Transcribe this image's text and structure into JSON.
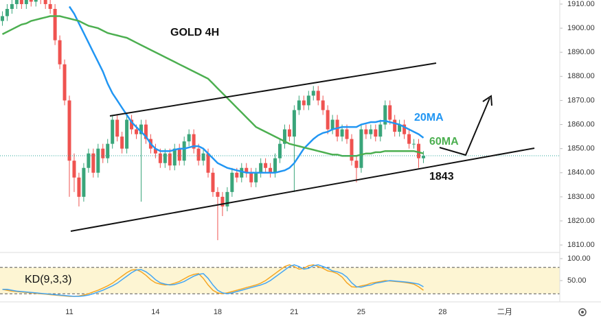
{
  "chart_data": [
    {
      "type": "candlestick",
      "title": "GOLD 4H",
      "xlim": [
        -0.5,
        116.5
      ],
      "xticks": [
        {
          "value": 14,
          "label": "11"
        },
        {
          "value": 32,
          "label": "14"
        },
        {
          "value": 45,
          "label": "18"
        },
        {
          "value": 61,
          "label": "21"
        },
        {
          "value": 75,
          "label": "25"
        },
        {
          "value": 92,
          "label": "28"
        },
        {
          "value": 105,
          "label": "二月"
        }
      ],
      "ylim": [
        1806.9,
        1911.7
      ],
      "yticks": [
        {
          "value": 1810,
          "label": "1810.00"
        },
        {
          "value": 1820,
          "label": "1820.00"
        },
        {
          "value": 1830,
          "label": "1830.00"
        },
        {
          "value": 1840,
          "label": "1840.00"
        },
        {
          "value": 1850,
          "label": "1850.00"
        },
        {
          "value": 1860,
          "label": "1860.00"
        },
        {
          "value": 1870,
          "label": "1870.00"
        },
        {
          "value": 1880,
          "label": "1880.00"
        },
        {
          "value": 1890,
          "label": "1890.00"
        },
        {
          "value": 1900,
          "label": "1900.00"
        },
        {
          "value": 1910,
          "label": "1910.00"
        }
      ],
      "up_color": "#3aa57a",
      "down_color": "#ef5350",
      "open": [
        1903,
        1905,
        1908,
        1910,
        1912,
        1910,
        1913,
        1911,
        1914,
        1912,
        1910,
        1908,
        1895,
        1885,
        1870,
        1845,
        1838,
        1830,
        1842,
        1848,
        1840,
        1850,
        1846,
        1852,
        1862,
        1855,
        1850,
        1862,
        1858,
        1856,
        1860,
        1854,
        1850,
        1848,
        1844,
        1848,
        1843,
        1850,
        1845,
        1853,
        1856,
        1850,
        1845,
        1848,
        1840,
        1832,
        1830,
        1826,
        1832,
        1840,
        1838,
        1842,
        1840,
        1836,
        1840,
        1844,
        1842,
        1840,
        1846,
        1852,
        1858,
        1855,
        1866,
        1870,
        1868,
        1872,
        1874,
        1870,
        1866,
        1858,
        1862,
        1855,
        1858,
        1854,
        1845,
        1842,
        1858,
        1856,
        1858,
        1855,
        1860,
        1868,
        1862,
        1857,
        1860,
        1856,
        1852,
        1852,
        1846
      ],
      "high": [
        1907,
        1910,
        1912,
        1914,
        1914,
        1915,
        1915,
        1916,
        1916,
        1914,
        1912,
        1910,
        1897,
        1887,
        1872,
        1848,
        1840,
        1844,
        1850,
        1850,
        1852,
        1852,
        1854,
        1864,
        1864,
        1857,
        1864,
        1864,
        1860,
        1862,
        1862,
        1856,
        1852,
        1850,
        1850,
        1850,
        1852,
        1852,
        1855,
        1858,
        1858,
        1852,
        1850,
        1850,
        1842,
        1834,
        1832,
        1834,
        1842,
        1842,
        1844,
        1844,
        1842,
        1842,
        1846,
        1846,
        1844,
        1848,
        1854,
        1860,
        1860,
        1868,
        1872,
        1872,
        1874,
        1876,
        1876,
        1872,
        1868,
        1864,
        1864,
        1860,
        1860,
        1856,
        1847,
        1860,
        1860,
        1860,
        1860,
        1862,
        1870,
        1870,
        1864,
        1862,
        1862,
        1858,
        1854,
        1854,
        1849
      ],
      "low": [
        1901,
        1903,
        1906,
        1908,
        1908,
        1908,
        1909,
        1909,
        1910,
        1908,
        1906,
        1893,
        1883,
        1868,
        1830,
        1832,
        1826,
        1828,
        1840,
        1838,
        1838,
        1844,
        1844,
        1850,
        1853,
        1848,
        1848,
        1856,
        1854,
        1828,
        1852,
        1848,
        1846,
        1842,
        1842,
        1841,
        1841,
        1843,
        1843,
        1851,
        1848,
        1843,
        1843,
        1838,
        1830,
        1812,
        1822,
        1824,
        1830,
        1836,
        1836,
        1838,
        1834,
        1834,
        1838,
        1840,
        1838,
        1838,
        1844,
        1850,
        1853,
        1832,
        1864,
        1866,
        1866,
        1870,
        1868,
        1864,
        1856,
        1856,
        1853,
        1853,
        1852,
        1843,
        1836,
        1840,
        1854,
        1854,
        1853,
        1853,
        1858,
        1860,
        1855,
        1855,
        1854,
        1850,
        1850,
        1842,
        1844
      ],
      "close": [
        1905,
        1908,
        1910,
        1912,
        1910,
        1913,
        1911,
        1914,
        1912,
        1910,
        1908,
        1895,
        1885,
        1870,
        1845,
        1838,
        1830,
        1842,
        1848,
        1840,
        1850,
        1846,
        1852,
        1862,
        1855,
        1850,
        1862,
        1858,
        1856,
        1860,
        1854,
        1850,
        1848,
        1844,
        1848,
        1843,
        1850,
        1845,
        1853,
        1856,
        1850,
        1845,
        1848,
        1840,
        1832,
        1830,
        1826,
        1832,
        1840,
        1838,
        1842,
        1840,
        1836,
        1840,
        1844,
        1842,
        1840,
        1846,
        1852,
        1858,
        1855,
        1866,
        1870,
        1868,
        1872,
        1874,
        1870,
        1866,
        1858,
        1862,
        1855,
        1858,
        1854,
        1845,
        1842,
        1858,
        1856,
        1858,
        1855,
        1860,
        1868,
        1862,
        1857,
        1860,
        1856,
        1852,
        1852,
        1846,
        1847
      ],
      "series": [
        {
          "name": "20MA",
          "color": "#2196f3",
          "values": [
            null,
            null,
            null,
            null,
            null,
            null,
            null,
            null,
            null,
            null,
            null,
            null,
            null,
            null,
            1909,
            1906,
            1902,
            1898,
            1894,
            1890,
            1886,
            1882,
            1877,
            1873,
            1870,
            1867,
            1864,
            1861,
            1859,
            1857,
            1855,
            1852,
            1850,
            1849,
            1849,
            1849,
            1849.5,
            1850,
            1850,
            1850.5,
            1851,
            1851,
            1850,
            1848,
            1846,
            1844,
            1843,
            1842,
            1841.5,
            1841,
            1840.5,
            1840,
            1840,
            1840,
            1840,
            1840,
            1840,
            1840,
            1840.5,
            1841,
            1842,
            1844,
            1847,
            1850,
            1852,
            1854,
            1855.5,
            1856.5,
            1857,
            1858,
            1858.5,
            1859,
            1859,
            1859,
            1859,
            1860,
            1860.5,
            1861,
            1861,
            1861.5,
            1861.5,
            1861,
            1860.5,
            1860,
            1859,
            1858,
            1857,
            1856,
            1854.5
          ]
        },
        {
          "name": "60MA",
          "color": "#4caf50",
          "values": [
            1897.5,
            1898.5,
            1899.5,
            1900.5,
            1901.5,
            1902,
            1903,
            1903.5,
            1904,
            1904.5,
            1905,
            1905,
            1905,
            1904.5,
            1904,
            1903.5,
            1903,
            1902,
            1901,
            1900.5,
            1900,
            1899,
            1898,
            1897.5,
            1897,
            1896.5,
            1896,
            1895,
            1894,
            1893,
            1892,
            1891,
            1890,
            1889,
            1888,
            1887,
            1886,
            1885,
            1884,
            1883,
            1882,
            1881,
            1880,
            1879,
            1877,
            1875,
            1873,
            1871,
            1869,
            1867,
            1865,
            1863,
            1861,
            1859,
            1858,
            1857,
            1856,
            1855,
            1854,
            1853,
            1852,
            1851.5,
            1851,
            1850.5,
            1850,
            1849.5,
            1849,
            1848.5,
            1848,
            1847.5,
            1847.5,
            1847,
            1847,
            1847,
            1847,
            1847.5,
            1848,
            1848,
            1848.5,
            1848.5,
            1849,
            1849,
            1849,
            1849,
            1849,
            1849,
            1849,
            1848.5,
            1848
          ]
        }
      ],
      "annotations": [
        {
          "text": "1843"
        }
      ]
    },
    {
      "type": "line",
      "title": "KD(9,3,3)",
      "xlim": [
        -0.5,
        116.5
      ],
      "ylim": [
        10,
        110
      ],
      "yticks": [
        {
          "value": 50,
          "label": "50.00"
        },
        {
          "value": 100,
          "label": "100.00"
        }
      ],
      "levels": [
        80,
        20
      ],
      "series": [
        {
          "color": "#f5a623",
          "values": [
            30,
            28,
            26,
            25,
            24,
            23,
            22,
            21,
            20,
            19,
            18,
            17,
            16,
            15,
            14,
            14,
            15,
            17,
            20,
            24,
            28,
            33,
            38,
            44,
            52,
            60,
            68,
            74,
            75,
            70,
            62,
            52,
            45,
            42,
            40,
            41,
            44,
            48,
            54,
            60,
            64,
            66,
            55,
            40,
            28,
            22,
            20,
            22,
            25,
            28,
            31,
            34,
            37,
            40,
            44,
            50,
            58,
            66,
            74,
            82,
            86,
            82,
            76,
            78,
            84,
            86,
            82,
            78,
            72,
            70,
            66,
            58,
            45,
            36,
            35,
            38,
            40,
            44,
            46,
            48,
            50,
            49,
            48,
            47,
            46,
            44,
            42,
            36,
            28
          ]
        },
        {
          "color": "#42a5f5",
          "values": [
            30,
            30,
            28,
            26,
            25,
            24,
            23,
            22,
            21,
            20,
            19,
            18,
            17,
            16,
            15,
            14,
            14,
            15,
            17,
            20,
            24,
            28,
            33,
            38,
            44,
            52,
            60,
            68,
            74,
            75,
            70,
            62,
            52,
            45,
            42,
            40,
            41,
            44,
            48,
            54,
            60,
            64,
            66,
            55,
            40,
            28,
            22,
            20,
            22,
            25,
            28,
            31,
            34,
            37,
            40,
            44,
            50,
            58,
            66,
            74,
            82,
            86,
            82,
            76,
            78,
            84,
            86,
            82,
            78,
            72,
            70,
            66,
            58,
            45,
            36,
            35,
            38,
            40,
            44,
            46,
            48,
            50,
            49,
            48,
            47,
            46,
            44,
            42,
            36
          ]
        }
      ]
    }
  ]
}
